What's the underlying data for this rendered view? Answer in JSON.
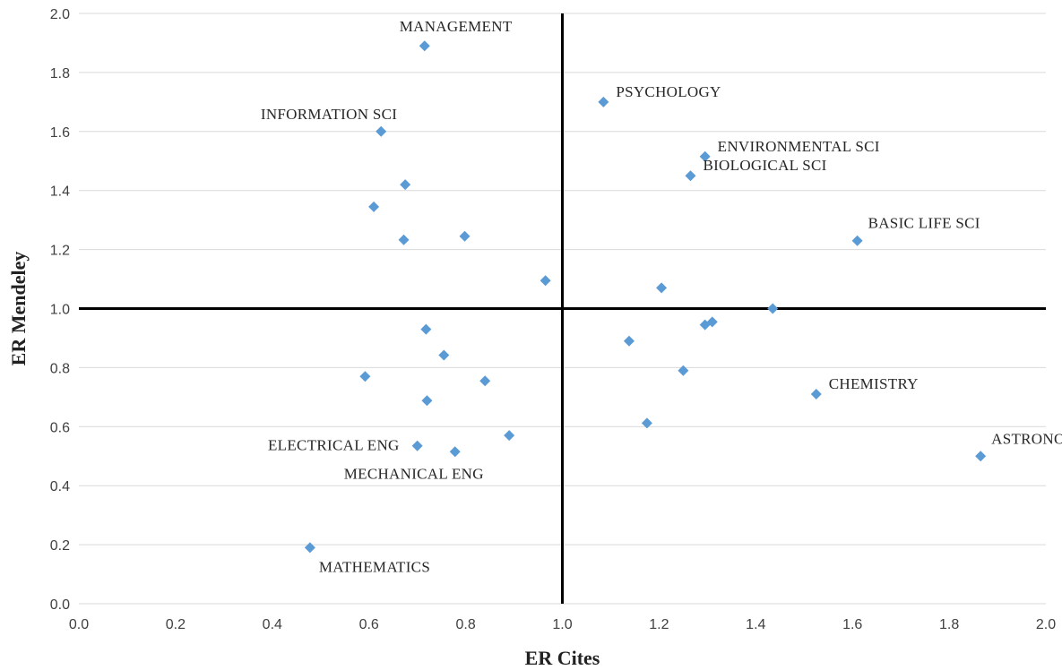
{
  "chart_data": {
    "type": "scatter",
    "title": "",
    "xlabel": "ER Cites",
    "ylabel": "ER Mendeley",
    "xlim": [
      0.0,
      2.0
    ],
    "ylim": [
      0.0,
      2.0
    ],
    "xticks": [
      "0.0",
      "0.2",
      "0.4",
      "0.6",
      "0.8",
      "1.0",
      "1.2",
      "1.4",
      "1.6",
      "1.8",
      "2.0"
    ],
    "yticks": [
      "0.0",
      "0.2",
      "0.4",
      "0.6",
      "0.8",
      "1.0",
      "1.2",
      "1.4",
      "1.6",
      "1.8",
      "2.0"
    ],
    "grid": "horizontal",
    "reference_lines": {
      "x": 1.0,
      "y": 1.0
    },
    "marker": "diamond",
    "marker_color": "#5b9bd5",
    "points": [
      {
        "x": 0.715,
        "y": 1.89,
        "label": "MANAGEMENT",
        "label_pos": "above"
      },
      {
        "x": 1.085,
        "y": 1.7,
        "label": "PSYCHOLOGY",
        "label_pos": "right"
      },
      {
        "x": 0.625,
        "y": 1.6,
        "label": "INFORMATION SCI",
        "label_pos": "above-left"
      },
      {
        "x": 1.295,
        "y": 1.515,
        "label": "ENVIRONMENTAL SCI",
        "label_pos": "right"
      },
      {
        "x": 1.265,
        "y": 1.45,
        "label": "BIOLOGICAL SCI",
        "label_pos": "right"
      },
      {
        "x": 0.675,
        "y": 1.42,
        "label": "",
        "label_pos": ""
      },
      {
        "x": 0.61,
        "y": 1.345,
        "label": "",
        "label_pos": ""
      },
      {
        "x": 0.672,
        "y": 1.233,
        "label": "",
        "label_pos": ""
      },
      {
        "x": 0.798,
        "y": 1.245,
        "label": "",
        "label_pos": ""
      },
      {
        "x": 1.61,
        "y": 1.23,
        "label": "BASIC LIFE SCI",
        "label_pos": "above-right"
      },
      {
        "x": 0.965,
        "y": 1.095,
        "label": "",
        "label_pos": ""
      },
      {
        "x": 1.205,
        "y": 1.07,
        "label": "",
        "label_pos": ""
      },
      {
        "x": 1.435,
        "y": 1.0,
        "label": "",
        "label_pos": ""
      },
      {
        "x": 1.295,
        "y": 0.945,
        "label": "",
        "label_pos": ""
      },
      {
        "x": 1.31,
        "y": 0.955,
        "label": "",
        "label_pos": ""
      },
      {
        "x": 0.718,
        "y": 0.93,
        "label": "",
        "label_pos": ""
      },
      {
        "x": 1.138,
        "y": 0.89,
        "label": "",
        "label_pos": ""
      },
      {
        "x": 0.755,
        "y": 0.842,
        "label": "",
        "label_pos": ""
      },
      {
        "x": 1.25,
        "y": 0.79,
        "label": "",
        "label_pos": ""
      },
      {
        "x": 0.592,
        "y": 0.77,
        "label": "",
        "label_pos": ""
      },
      {
        "x": 0.84,
        "y": 0.755,
        "label": "",
        "label_pos": ""
      },
      {
        "x": 1.525,
        "y": 0.71,
        "label": "CHEMISTRY",
        "label_pos": "right"
      },
      {
        "x": 0.72,
        "y": 0.688,
        "label": "",
        "label_pos": ""
      },
      {
        "x": 1.175,
        "y": 0.612,
        "label": "",
        "label_pos": ""
      },
      {
        "x": 0.89,
        "y": 0.57,
        "label": "",
        "label_pos": ""
      },
      {
        "x": 0.7,
        "y": 0.535,
        "label": "ELECTRICAL ENG",
        "label_pos": "left"
      },
      {
        "x": 0.778,
        "y": 0.515,
        "label": "MECHANICAL ENG",
        "label_pos": "below"
      },
      {
        "x": 1.865,
        "y": 0.5,
        "label": "ASTRONOMY",
        "label_pos": "above-right"
      },
      {
        "x": 0.478,
        "y": 0.19,
        "label": "MATHEMATICS",
        "label_pos": "below-right"
      }
    ]
  }
}
